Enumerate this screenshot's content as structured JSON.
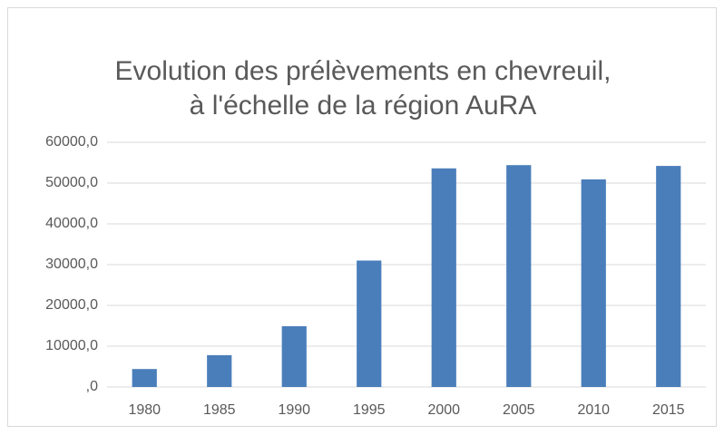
{
  "chart_data": {
    "type": "bar",
    "title": [
      "Evolution des prélèvements en chevreuil,",
      "à l'échelle de la région AuRA"
    ],
    "categories": [
      "1980",
      "1985",
      "1990",
      "1995",
      "2000",
      "2005",
      "2010",
      "2015"
    ],
    "values": [
      4400,
      7800,
      14900,
      31000,
      53600,
      54400,
      50900,
      54200
    ],
    "color": "#4a7ebb",
    "ylim": [
      0,
      60000
    ],
    "yticks": [
      {
        "value": 0,
        "label": ",0"
      },
      {
        "value": 10000,
        "label": "10000,0"
      },
      {
        "value": 20000,
        "label": "20000,0"
      },
      {
        "value": 30000,
        "label": "30000,0"
      },
      {
        "value": 40000,
        "label": "40000,0"
      },
      {
        "value": 50000,
        "label": "50000,0"
      },
      {
        "value": 60000,
        "label": "60000,0"
      }
    ],
    "grid": true
  }
}
